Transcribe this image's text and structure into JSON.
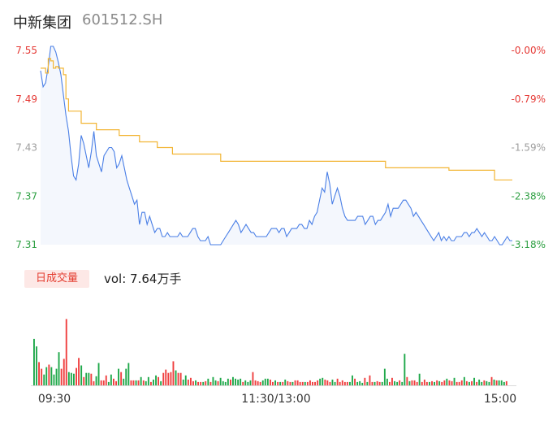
{
  "header": {
    "name": "中新集团",
    "code": "601512.SH"
  },
  "volume": {
    "badge": "日成交量",
    "text": "vol: 7.64万手"
  },
  "chart_data": {
    "type": "line",
    "ylim": [
      7.31,
      7.55
    ],
    "y_ticks": [
      {
        "label": "7.55",
        "value": 7.55,
        "color": "#e53935"
      },
      {
        "label": "7.49",
        "value": 7.49,
        "color": "#e53935"
      },
      {
        "label": "7.43",
        "value": 7.43,
        "color": "#9e9e9e"
      },
      {
        "label": "7.37",
        "value": 7.37,
        "color": "#2ea043"
      },
      {
        "label": "7.31",
        "value": 7.31,
        "color": "#2ea043"
      }
    ],
    "pct_ticks": [
      {
        "label": "-0.00%",
        "value": 7.55,
        "color": "#e53935"
      },
      {
        "label": "-0.79%",
        "value": 7.49,
        "color": "#e53935"
      },
      {
        "label": "-1.59%",
        "value": 7.43,
        "color": "#9e9e9e"
      },
      {
        "label": "-2.38%",
        "value": 7.37,
        "color": "#2ea043"
      },
      {
        "label": "-3.18%",
        "value": 7.31,
        "color": "#2ea043"
      }
    ],
    "x_ticks": [
      "09:30",
      "11:30/13:00",
      "15:00"
    ],
    "price": [
      [
        0,
        7.525
      ],
      [
        1,
        7.505
      ],
      [
        2,
        7.51
      ],
      [
        3,
        7.53
      ],
      [
        4,
        7.555
      ],
      [
        5,
        7.555
      ],
      [
        6,
        7.548
      ],
      [
        7,
        7.535
      ],
      [
        8,
        7.52
      ],
      [
        9,
        7.495
      ],
      [
        10,
        7.47
      ],
      [
        11,
        7.45
      ],
      [
        12,
        7.42
      ],
      [
        13,
        7.395
      ],
      [
        14,
        7.39
      ],
      [
        15,
        7.41
      ],
      [
        16,
        7.445
      ],
      [
        17,
        7.435
      ],
      [
        18,
        7.42
      ],
      [
        19,
        7.405
      ],
      [
        20,
        7.425
      ],
      [
        21,
        7.45
      ],
      [
        22,
        7.42
      ],
      [
        23,
        7.41
      ],
      [
        24,
        7.4
      ],
      [
        25,
        7.42
      ],
      [
        26,
        7.425
      ],
      [
        27,
        7.43
      ],
      [
        28,
        7.43
      ],
      [
        29,
        7.425
      ],
      [
        30,
        7.405
      ],
      [
        31,
        7.41
      ],
      [
        32,
        7.42
      ],
      [
        33,
        7.405
      ],
      [
        34,
        7.39
      ],
      [
        35,
        7.38
      ],
      [
        36,
        7.37
      ],
      [
        37,
        7.36
      ],
      [
        38,
        7.365
      ],
      [
        39,
        7.335
      ],
      [
        40,
        7.35
      ],
      [
        41,
        7.35
      ],
      [
        42,
        7.335
      ],
      [
        43,
        7.345
      ],
      [
        44,
        7.335
      ],
      [
        45,
        7.325
      ],
      [
        46,
        7.33
      ],
      [
        47,
        7.33
      ],
      [
        48,
        7.32
      ],
      [
        49,
        7.32
      ],
      [
        50,
        7.325
      ],
      [
        51,
        7.32
      ],
      [
        52,
        7.32
      ],
      [
        53,
        7.32
      ],
      [
        54,
        7.32
      ],
      [
        55,
        7.325
      ],
      [
        56,
        7.32
      ],
      [
        57,
        7.32
      ],
      [
        58,
        7.32
      ],
      [
        59,
        7.325
      ],
      [
        60,
        7.33
      ],
      [
        61,
        7.33
      ],
      [
        62,
        7.32
      ],
      [
        63,
        7.315
      ],
      [
        64,
        7.315
      ],
      [
        65,
        7.315
      ],
      [
        66,
        7.32
      ],
      [
        67,
        7.31
      ],
      [
        68,
        7.31
      ],
      [
        69,
        7.31
      ],
      [
        70,
        7.31
      ],
      [
        71,
        7.31
      ],
      [
        72,
        7.315
      ],
      [
        73,
        7.32
      ],
      [
        74,
        7.325
      ],
      [
        75,
        7.33
      ],
      [
        76,
        7.335
      ],
      [
        77,
        7.34
      ],
      [
        78,
        7.335
      ],
      [
        79,
        7.325
      ],
      [
        80,
        7.33
      ],
      [
        81,
        7.335
      ],
      [
        82,
        7.33
      ],
      [
        83,
        7.325
      ],
      [
        84,
        7.325
      ],
      [
        85,
        7.32
      ],
      [
        86,
        7.32
      ],
      [
        87,
        7.32
      ],
      [
        88,
        7.32
      ],
      [
        89,
        7.32
      ],
      [
        90,
        7.325
      ],
      [
        91,
        7.33
      ],
      [
        92,
        7.33
      ],
      [
        93,
        7.33
      ],
      [
        94,
        7.325
      ],
      [
        95,
        7.33
      ],
      [
        96,
        7.33
      ],
      [
        97,
        7.32
      ],
      [
        98,
        7.325
      ],
      [
        99,
        7.33
      ],
      [
        100,
        7.33
      ],
      [
        101,
        7.33
      ],
      [
        102,
        7.335
      ],
      [
        103,
        7.335
      ],
      [
        104,
        7.33
      ],
      [
        105,
        7.33
      ],
      [
        106,
        7.34
      ],
      [
        107,
        7.335
      ],
      [
        108,
        7.345
      ],
      [
        109,
        7.35
      ],
      [
        110,
        7.365
      ],
      [
        111,
        7.38
      ],
      [
        112,
        7.375
      ],
      [
        113,
        7.4
      ],
      [
        114,
        7.385
      ],
      [
        115,
        7.36
      ],
      [
        116,
        7.37
      ],
      [
        117,
        7.38
      ],
      [
        118,
        7.37
      ],
      [
        119,
        7.355
      ],
      [
        120,
        7.345
      ],
      [
        121,
        7.34
      ],
      [
        122,
        7.34
      ],
      [
        123,
        7.34
      ],
      [
        124,
        7.34
      ],
      [
        125,
        7.345
      ],
      [
        126,
        7.345
      ],
      [
        127,
        7.345
      ],
      [
        128,
        7.335
      ],
      [
        129,
        7.34
      ],
      [
        130,
        7.345
      ],
      [
        131,
        7.345
      ],
      [
        132,
        7.335
      ],
      [
        133,
        7.34
      ],
      [
        134,
        7.34
      ],
      [
        135,
        7.345
      ],
      [
        136,
        7.35
      ],
      [
        137,
        7.36
      ],
      [
        138,
        7.345
      ],
      [
        139,
        7.355
      ],
      [
        140,
        7.355
      ],
      [
        141,
        7.355
      ],
      [
        142,
        7.36
      ],
      [
        143,
        7.365
      ],
      [
        144,
        7.365
      ],
      [
        145,
        7.36
      ],
      [
        146,
        7.355
      ],
      [
        147,
        7.345
      ],
      [
        148,
        7.35
      ],
      [
        149,
        7.345
      ],
      [
        150,
        7.34
      ],
      [
        151,
        7.335
      ],
      [
        152,
        7.33
      ],
      [
        153,
        7.325
      ],
      [
        154,
        7.32
      ],
      [
        155,
        7.315
      ],
      [
        156,
        7.32
      ],
      [
        157,
        7.325
      ],
      [
        158,
        7.315
      ],
      [
        159,
        7.32
      ],
      [
        160,
        7.315
      ],
      [
        161,
        7.32
      ],
      [
        162,
        7.315
      ],
      [
        163,
        7.315
      ],
      [
        164,
        7.32
      ],
      [
        165,
        7.32
      ],
      [
        166,
        7.32
      ],
      [
        167,
        7.325
      ],
      [
        168,
        7.325
      ],
      [
        169,
        7.32
      ],
      [
        170,
        7.325
      ],
      [
        171,
        7.325
      ],
      [
        172,
        7.33
      ],
      [
        173,
        7.325
      ],
      [
        174,
        7.32
      ],
      [
        175,
        7.325
      ],
      [
        176,
        7.32
      ],
      [
        177,
        7.315
      ],
      [
        178,
        7.315
      ],
      [
        179,
        7.32
      ],
      [
        180,
        7.315
      ],
      [
        181,
        7.31
      ],
      [
        182,
        7.31
      ],
      [
        183,
        7.315
      ],
      [
        184,
        7.32
      ],
      [
        185,
        7.315
      ],
      [
        186,
        7.315
      ]
    ],
    "avg_price": [
      [
        0,
        7.528
      ],
      [
        2,
        7.522
      ],
      [
        3,
        7.54
      ],
      [
        4,
        7.537
      ],
      [
        5,
        7.528
      ],
      [
        6,
        7.53
      ],
      [
        7,
        7.528
      ],
      [
        9,
        7.52
      ],
      [
        10,
        7.49
      ],
      [
        11,
        7.475
      ],
      [
        15,
        7.475
      ],
      [
        16,
        7.46
      ],
      [
        21,
        7.46
      ],
      [
        22,
        7.452
      ],
      [
        30,
        7.452
      ],
      [
        31,
        7.445
      ],
      [
        38,
        7.445
      ],
      [
        39,
        7.437
      ],
      [
        45,
        7.437
      ],
      [
        46,
        7.43
      ],
      [
        51,
        7.43
      ],
      [
        52,
        7.422
      ],
      [
        70,
        7.422
      ],
      [
        71,
        7.413
      ],
      [
        135,
        7.413
      ],
      [
        136,
        7.405
      ],
      [
        160,
        7.405
      ],
      [
        161,
        7.402
      ],
      [
        178,
        7.402
      ],
      [
        179,
        7.39
      ],
      [
        186,
        7.39
      ]
    ],
    "x_max": 186,
    "volume": [
      [
        56,
        "g"
      ],
      [
        47,
        "g"
      ],
      [
        28,
        "r"
      ],
      [
        20,
        "r"
      ],
      [
        13,
        "g"
      ],
      [
        22,
        "g"
      ],
      [
        25,
        "r"
      ],
      [
        22,
        "g"
      ],
      [
        13,
        "g"
      ],
      [
        20,
        "g"
      ],
      [
        40,
        "g"
      ],
      [
        20,
        "r"
      ],
      [
        32,
        "r"
      ],
      [
        80,
        "r"
      ],
      [
        16,
        "g"
      ],
      [
        15,
        "g"
      ],
      [
        14,
        "g"
      ],
      [
        21,
        "r"
      ],
      [
        33,
        "r"
      ],
      [
        24,
        "g"
      ],
      [
        10,
        "r"
      ],
      [
        15,
        "g"
      ],
      [
        15,
        "g"
      ],
      [
        14,
        "r"
      ],
      [
        5,
        "r"
      ],
      [
        11,
        "g"
      ],
      [
        27,
        "g"
      ],
      [
        6,
        "r"
      ],
      [
        6,
        "r"
      ],
      [
        12,
        "r"
      ],
      [
        4,
        "g"
      ],
      [
        13,
        "g"
      ],
      [
        8,
        "r"
      ],
      [
        5,
        "r"
      ],
      [
        20,
        "g"
      ],
      [
        16,
        "r"
      ],
      [
        8,
        "g"
      ],
      [
        20,
        "g"
      ],
      [
        27,
        "g"
      ],
      [
        6,
        "r"
      ],
      [
        6,
        "r"
      ],
      [
        6,
        "g"
      ],
      [
        6,
        "r"
      ],
      [
        10,
        "g"
      ],
      [
        6,
        "r"
      ],
      [
        5,
        "g"
      ],
      [
        10,
        "g"
      ],
      [
        4,
        "r"
      ],
      [
        7,
        "g"
      ],
      [
        12,
        "g"
      ],
      [
        10,
        "r"
      ],
      [
        5,
        "g"
      ],
      [
        15,
        "r"
      ],
      [
        19,
        "r"
      ],
      [
        15,
        "r"
      ],
      [
        16,
        "r"
      ],
      [
        29,
        "r"
      ],
      [
        18,
        "g"
      ],
      [
        15,
        "r"
      ],
      [
        15,
        "r"
      ],
      [
        7,
        "g"
      ],
      [
        12,
        "g"
      ],
      [
        7,
        "r"
      ],
      [
        9,
        "r"
      ],
      [
        5,
        "r"
      ],
      [
        6,
        "g"
      ],
      [
        4,
        "r"
      ],
      [
        4,
        "r"
      ],
      [
        4,
        "g"
      ],
      [
        5,
        "r"
      ],
      [
        8,
        "g"
      ],
      [
        4,
        "r"
      ],
      [
        10,
        "g"
      ],
      [
        6,
        "g"
      ],
      [
        5,
        "r"
      ],
      [
        9,
        "g"
      ],
      [
        5,
        "g"
      ],
      [
        4,
        "g"
      ],
      [
        8,
        "g"
      ],
      [
        7,
        "r"
      ],
      [
        10,
        "g"
      ],
      [
        8,
        "g"
      ],
      [
        7,
        "g"
      ],
      [
        8,
        "g"
      ],
      [
        4,
        "r"
      ],
      [
        6,
        "g"
      ],
      [
        4,
        "g"
      ],
      [
        6,
        "g"
      ],
      [
        16,
        "r"
      ],
      [
        6,
        "r"
      ],
      [
        5,
        "r"
      ],
      [
        4,
        "r"
      ],
      [
        6,
        "g"
      ],
      [
        8,
        "g"
      ],
      [
        8,
        "g"
      ],
      [
        7,
        "r"
      ],
      [
        4,
        "r"
      ],
      [
        6,
        "g"
      ],
      [
        4,
        "r"
      ],
      [
        4,
        "g"
      ],
      [
        4,
        "r"
      ],
      [
        7,
        "g"
      ],
      [
        5,
        "r"
      ],
      [
        4,
        "r"
      ],
      [
        4,
        "g"
      ],
      [
        6,
        "r"
      ],
      [
        6,
        "r"
      ],
      [
        4,
        "r"
      ],
      [
        4,
        "r"
      ],
      [
        4,
        "g"
      ],
      [
        4,
        "r"
      ],
      [
        6,
        "r"
      ],
      [
        4,
        "r"
      ],
      [
        4,
        "r"
      ],
      [
        6,
        "r"
      ],
      [
        8,
        "g"
      ],
      [
        9,
        "g"
      ],
      [
        7,
        "r"
      ],
      [
        6,
        "r"
      ],
      [
        4,
        "r"
      ],
      [
        7,
        "g"
      ],
      [
        4,
        "g"
      ],
      [
        8,
        "r"
      ],
      [
        4,
        "r"
      ],
      [
        6,
        "r"
      ],
      [
        4,
        "r"
      ],
      [
        4,
        "r"
      ],
      [
        4,
        "g"
      ],
      [
        12,
        "g"
      ],
      [
        8,
        "r"
      ],
      [
        4,
        "g"
      ],
      [
        5,
        "g"
      ],
      [
        3,
        "g"
      ],
      [
        9,
        "r"
      ],
      [
        4,
        "g"
      ],
      [
        12,
        "r"
      ],
      [
        4,
        "r"
      ],
      [
        4,
        "g"
      ],
      [
        5,
        "r"
      ],
      [
        4,
        "r"
      ],
      [
        4,
        "g"
      ],
      [
        20,
        "g"
      ],
      [
        8,
        "g"
      ],
      [
        4,
        "r"
      ],
      [
        9,
        "r"
      ],
      [
        5,
        "g"
      ],
      [
        4,
        "g"
      ],
      [
        6,
        "r"
      ],
      [
        4,
        "g"
      ],
      [
        38,
        "g"
      ],
      [
        10,
        "r"
      ],
      [
        5,
        "g"
      ],
      [
        6,
        "r"
      ],
      [
        6,
        "r"
      ],
      [
        4,
        "r"
      ],
      [
        14,
        "g"
      ],
      [
        4,
        "r"
      ],
      [
        7,
        "r"
      ],
      [
        4,
        "r"
      ],
      [
        4,
        "g"
      ],
      [
        5,
        "r"
      ],
      [
        4,
        "g"
      ],
      [
        6,
        "r"
      ],
      [
        5,
        "g"
      ],
      [
        4,
        "r"
      ],
      [
        6,
        "r"
      ],
      [
        8,
        "g"
      ],
      [
        6,
        "r"
      ],
      [
        5,
        "r"
      ],
      [
        9,
        "g"
      ],
      [
        4,
        "r"
      ],
      [
        4,
        "r"
      ],
      [
        6,
        "r"
      ],
      [
        10,
        "g"
      ],
      [
        5,
        "r"
      ],
      [
        4,
        "g"
      ],
      [
        5,
        "r"
      ],
      [
        9,
        "g"
      ],
      [
        4,
        "r"
      ],
      [
        7,
        "g"
      ],
      [
        4,
        "g"
      ],
      [
        6,
        "r"
      ],
      [
        5,
        "g"
      ],
      [
        4,
        "g"
      ],
      [
        10,
        "r"
      ],
      [
        7,
        "g"
      ],
      [
        6,
        "r"
      ],
      [
        6,
        "g"
      ],
      [
        6,
        "g"
      ],
      [
        4,
        "g"
      ],
      [
        5,
        "r"
      ]
    ],
    "volume_max": 100
  }
}
